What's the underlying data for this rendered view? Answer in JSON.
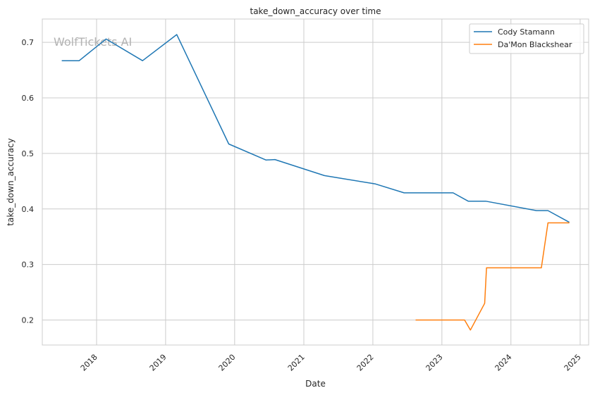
{
  "chart_data": {
    "type": "line",
    "title": "take_down_accuracy over time",
    "xlabel": "Date",
    "ylabel": "take_down_accuracy",
    "watermark": "WolfTickets AI",
    "grid": true,
    "legend_position": "top-right",
    "xlim": [
      "2017-03-20",
      "2025-02-15"
    ],
    "ylim": [
      0.155,
      0.742
    ],
    "x_ticks": [
      "2018-01-01",
      "2019-01-01",
      "2020-01-01",
      "2021-01-01",
      "2022-01-01",
      "2023-01-01",
      "2024-01-01",
      "2025-01-01"
    ],
    "x_tick_labels": [
      "2018",
      "2019",
      "2020",
      "2021",
      "2022",
      "2023",
      "2024",
      "2025"
    ],
    "y_ticks": [
      0.2,
      0.3,
      0.4,
      0.5,
      0.6,
      0.7
    ],
    "y_tick_labels": [
      "0.2",
      "0.3",
      "0.4",
      "0.5",
      "0.6",
      "0.7"
    ],
    "series": [
      {
        "name": "Cody Stamann",
        "color": "#1f77b4",
        "points": [
          [
            "2017-07-01",
            0.667
          ],
          [
            "2017-10-01",
            0.667
          ],
          [
            "2018-02-20",
            0.706
          ],
          [
            "2018-09-01",
            0.667
          ],
          [
            "2019-03-01",
            0.714
          ],
          [
            "2019-12-01",
            0.517
          ],
          [
            "2020-06-15",
            0.488
          ],
          [
            "2020-08-01",
            0.489
          ],
          [
            "2021-04-20",
            0.46
          ],
          [
            "2022-01-15",
            0.445
          ],
          [
            "2022-06-15",
            0.429
          ],
          [
            "2023-03-01",
            0.429
          ],
          [
            "2023-05-20",
            0.414
          ],
          [
            "2023-08-20",
            0.414
          ],
          [
            "2024-05-15",
            0.397
          ],
          [
            "2024-07-15",
            0.397
          ],
          [
            "2024-11-05",
            0.376
          ]
        ]
      },
      {
        "name": "Da'Mon Blackshear",
        "color": "#ff7f0e",
        "points": [
          [
            "2022-08-15",
            0.2
          ],
          [
            "2023-05-01",
            0.2
          ],
          [
            "2023-06-01",
            0.182
          ],
          [
            "2023-08-15",
            0.23
          ],
          [
            "2023-08-25",
            0.294
          ],
          [
            "2024-06-10",
            0.294
          ],
          [
            "2024-07-15",
            0.375
          ],
          [
            "2024-11-05",
            0.375
          ]
        ]
      }
    ]
  }
}
